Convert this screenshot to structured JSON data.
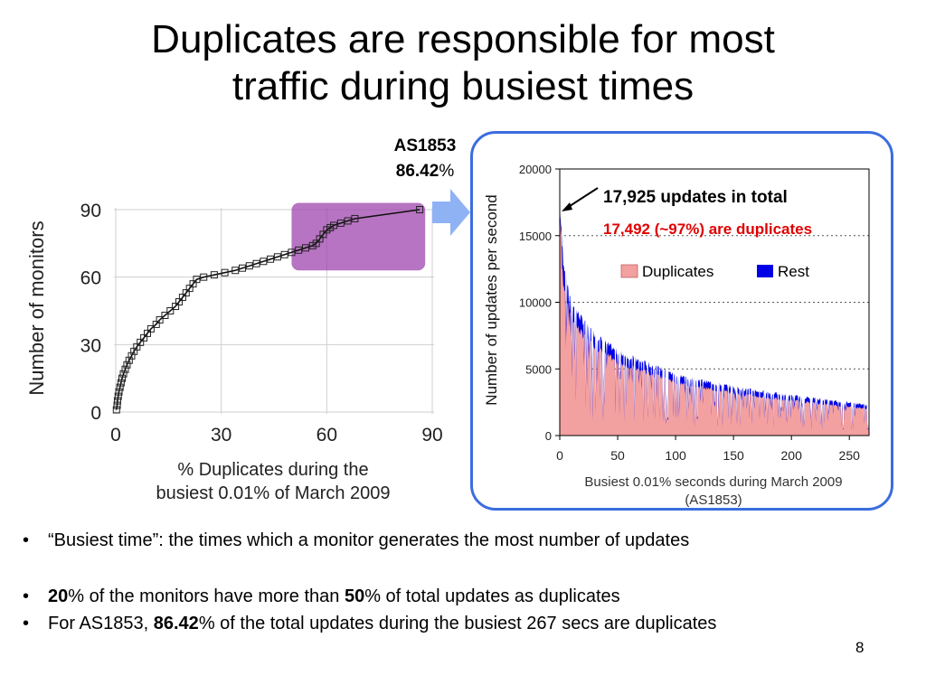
{
  "slide": {
    "title_line1": "Duplicates are responsible for most",
    "title_line2": "traffic during busiest times",
    "page_number": "8"
  },
  "callout": {
    "as_name": "AS1853",
    "percent_bold": "86.42",
    "percent_sign": "%"
  },
  "colors": {
    "highlight": "#9b3fab",
    "arrow": "#8fb2f5",
    "panel_border": "#3b6de0",
    "duplicates": "#f3a0a0",
    "rest": "#0000e6",
    "annotation_red": "#e00000"
  },
  "chart_data": [
    {
      "type": "line",
      "xlabel_line1": "% Duplicates during the",
      "xlabel_line2": "busiest 0.01% of March 2009",
      "ylabel": "Number of monitors",
      "xlim": [
        0,
        90
      ],
      "ylim": [
        0,
        90
      ],
      "xticks": [
        0,
        30,
        60,
        90
      ],
      "yticks": [
        0,
        30,
        60,
        90
      ],
      "grid": true,
      "marker": "square",
      "highlight_region": {
        "x": [
          50,
          88
        ],
        "y": [
          63,
          93
        ]
      },
      "points": [
        [
          0.2,
          1
        ],
        [
          0.4,
          3
        ],
        [
          0.5,
          5
        ],
        [
          0.7,
          7
        ],
        [
          0.9,
          9
        ],
        [
          1.2,
          11
        ],
        [
          1.5,
          13
        ],
        [
          1.8,
          15
        ],
        [
          2.2,
          17
        ],
        [
          2.7,
          19
        ],
        [
          3.2,
          21
        ],
        [
          3.8,
          23
        ],
        [
          4.5,
          25
        ],
        [
          5.2,
          27
        ],
        [
          6,
          29
        ],
        [
          7,
          31
        ],
        [
          8,
          33
        ],
        [
          9,
          35
        ],
        [
          10,
          37
        ],
        [
          11.5,
          39
        ],
        [
          12.5,
          41
        ],
        [
          14,
          43
        ],
        [
          15.5,
          45
        ],
        [
          17,
          47
        ],
        [
          18,
          49
        ],
        [
          19,
          51
        ],
        [
          20,
          53
        ],
        [
          21,
          55
        ],
        [
          22,
          57
        ],
        [
          23,
          59
        ],
        [
          25,
          60
        ],
        [
          28,
          61
        ],
        [
          31,
          62
        ],
        [
          34,
          63
        ],
        [
          36,
          64
        ],
        [
          38,
          65
        ],
        [
          40,
          66
        ],
        [
          42,
          67
        ],
        [
          44,
          68
        ],
        [
          46,
          69
        ],
        [
          48,
          70
        ],
        [
          50,
          71
        ],
        [
          52,
          72
        ],
        [
          54,
          73
        ],
        [
          56,
          74
        ],
        [
          57,
          75
        ],
        [
          58,
          77
        ],
        [
          59,
          79
        ],
        [
          60,
          81
        ],
        [
          61,
          82
        ],
        [
          62,
          83
        ],
        [
          64,
          84
        ],
        [
          66,
          85
        ],
        [
          68,
          86
        ],
        [
          86.42,
          90
        ]
      ]
    },
    {
      "type": "area",
      "stacked": true,
      "xlabel_line1": "Busiest 0.01% seconds during March 2009",
      "xlabel_line2": "(AS1853)",
      "ylabel": "Number of updates per second",
      "xlim": [
        0,
        267
      ],
      "ylim": [
        0,
        20000
      ],
      "xticks": [
        0,
        50,
        100,
        150,
        200,
        250
      ],
      "yticks": [
        0,
        5000,
        10000,
        15000,
        20000
      ],
      "ytick_labels": [
        "0",
        "5000",
        "10000",
        "15000",
        "20000"
      ],
      "grid": "horizontal-dotted",
      "legend_position": "inside-upper-right",
      "series": [
        {
          "name": "Duplicates",
          "color": "#f3a0a0"
        },
        {
          "name": "Rest",
          "color": "#0000e6"
        }
      ],
      "total_curve": [
        [
          0,
          17925
        ],
        [
          1,
          16000
        ],
        [
          2,
          14500
        ],
        [
          3,
          13400
        ],
        [
          5,
          12200
        ],
        [
          8,
          11000
        ],
        [
          12,
          9800
        ],
        [
          18,
          8900
        ],
        [
          25,
          8100
        ],
        [
          35,
          7300
        ],
        [
          50,
          6300
        ],
        [
          70,
          5600
        ],
        [
          100,
          4600
        ],
        [
          130,
          4000
        ],
        [
          160,
          3500
        ],
        [
          200,
          3000
        ],
        [
          230,
          2700
        ],
        [
          267,
          2300
        ]
      ],
      "annotation_total": "17,925 updates in total",
      "annotation_duplicates": "17,492 (~97%) are duplicates"
    }
  ],
  "bullets": {
    "b1": "“Busiest time”: the times which a monitor generates the most number of updates",
    "b2_bold1": "20",
    "b2_text1": "% of the monitors have more than ",
    "b2_bold2": "50",
    "b2_text2": "% of total updates as duplicates",
    "b3_text1": "For AS1853, ",
    "b3_bold": "86.42",
    "b3_text2": "% of the total updates during the busiest 267 secs are duplicates"
  }
}
